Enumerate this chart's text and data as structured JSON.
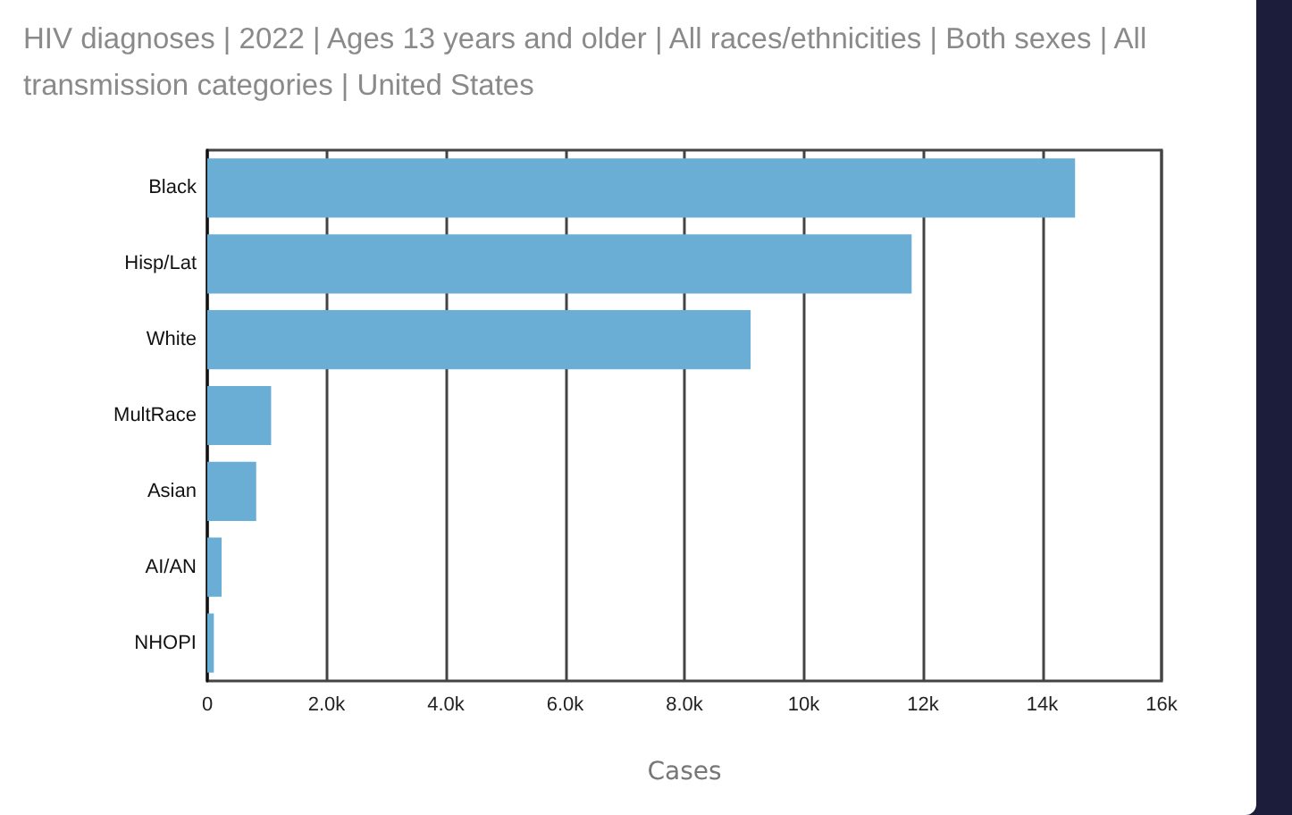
{
  "chart_data": {
    "type": "bar",
    "orientation": "horizontal",
    "title": "HIV diagnoses | 2022 | Ages 13 years and older | All races/ethnicities | Both sexes | All transmission categories | United States",
    "xlabel": "Cases",
    "categories": [
      "Black",
      "Hisp/Lat",
      "White",
      "MultRace",
      "Asian",
      "AI/AN",
      "NHOPI"
    ],
    "values": [
      14550,
      11810,
      9110,
      1070,
      820,
      240,
      110
    ],
    "color": "#6aaed6",
    "xlim": [
      0,
      16000
    ],
    "xticks": [
      0,
      {
        "value": 2000,
        "label": "2.0k"
      },
      {
        "value": 4000,
        "label": "4.0k"
      },
      {
        "value": 6000,
        "label": "6.0k"
      },
      {
        "value": 8000,
        "label": "8.0k"
      },
      {
        "value": 10000,
        "label": "10k"
      },
      {
        "value": 12000,
        "label": "12k"
      },
      {
        "value": 14000,
        "label": "14k"
      },
      {
        "value": 16000,
        "label": "16k"
      }
    ],
    "grid": "x"
  }
}
